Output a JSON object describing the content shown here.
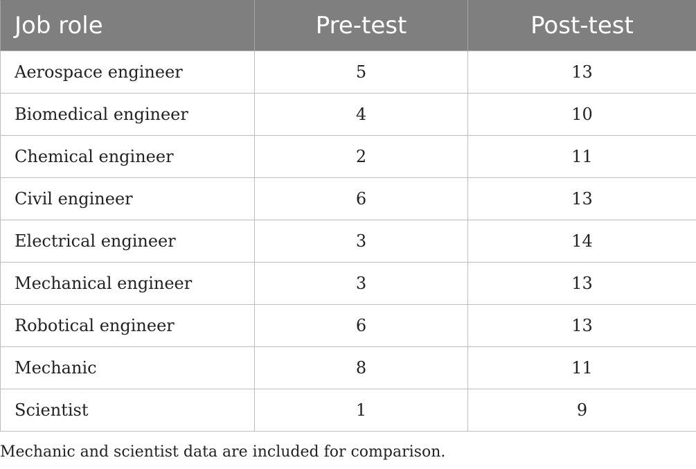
{
  "table": {
    "headers": [
      "Job role",
      "Pre-test",
      "Post-test"
    ],
    "rows": [
      [
        "Aerospace engineer",
        "5",
        "13"
      ],
      [
        "Biomedical engineer",
        "4",
        "10"
      ],
      [
        "Chemical engineer",
        "2",
        "11"
      ],
      [
        "Civil engineer",
        "6",
        "13"
      ],
      [
        "Electrical engineer",
        "3",
        "14"
      ],
      [
        "Mechanical engineer",
        "3",
        "13"
      ],
      [
        "Robotical engineer",
        "6",
        "13"
      ],
      [
        "Mechanic",
        "8",
        "11"
      ],
      [
        "Scientist",
        "1",
        "9"
      ]
    ]
  },
  "footnote": "Mechanic and scientist data are included for comparison."
}
